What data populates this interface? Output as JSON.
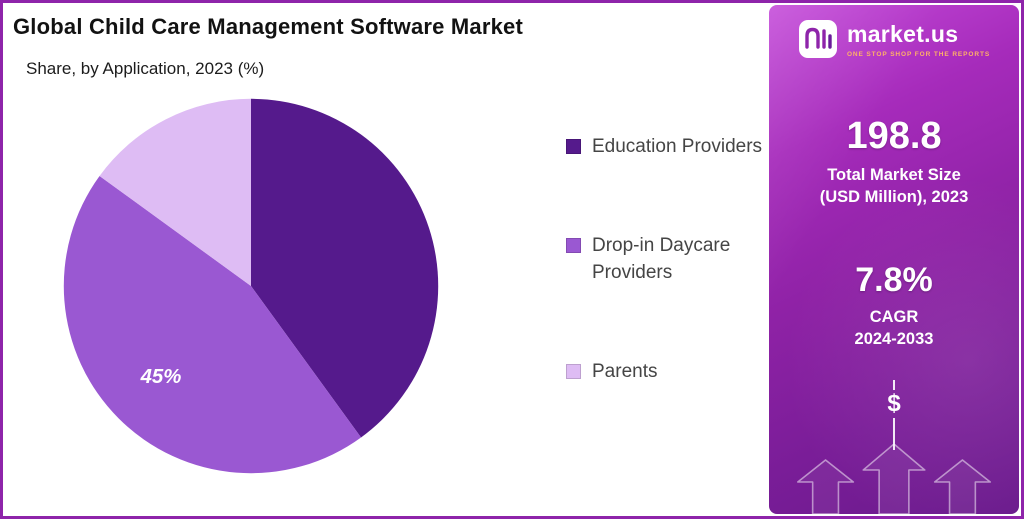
{
  "chart_data": {
    "type": "pie",
    "title": "Global Child Care Management Software Market",
    "subtitle": "Share, by Application, 2023 (%)",
    "unit": "%",
    "direction": "clockwise",
    "start_angle_deg": 0,
    "legend_position": "right",
    "slices": [
      {
        "label": "Education Providers",
        "value": 40,
        "color": "#551a8c",
        "data_label": ""
      },
      {
        "label": "Drop-in Daycare Providers",
        "value": 45,
        "color": "#9a58d2",
        "data_label": "45%"
      },
      {
        "label": "Parents",
        "value": 15,
        "color": "#debcf4",
        "data_label": ""
      }
    ]
  },
  "panel": {
    "brand_name": "market.us",
    "brand_tagline": "ONE STOP SHOP FOR THE REPORTS",
    "market_size": {
      "value": "198.8",
      "label_line1": "Total Market Size",
      "label_line2": "(USD Million), 2023"
    },
    "cagr": {
      "value": "7.8%",
      "label_line1": "CAGR",
      "label_line2": "2024-2033"
    },
    "dollar_symbol": "$",
    "accent_colors": {
      "panel_top": "#c44ad9",
      "panel_bottom": "#6a1a8c",
      "tagline": "#ffb266",
      "border": "#8e24aa"
    }
  }
}
